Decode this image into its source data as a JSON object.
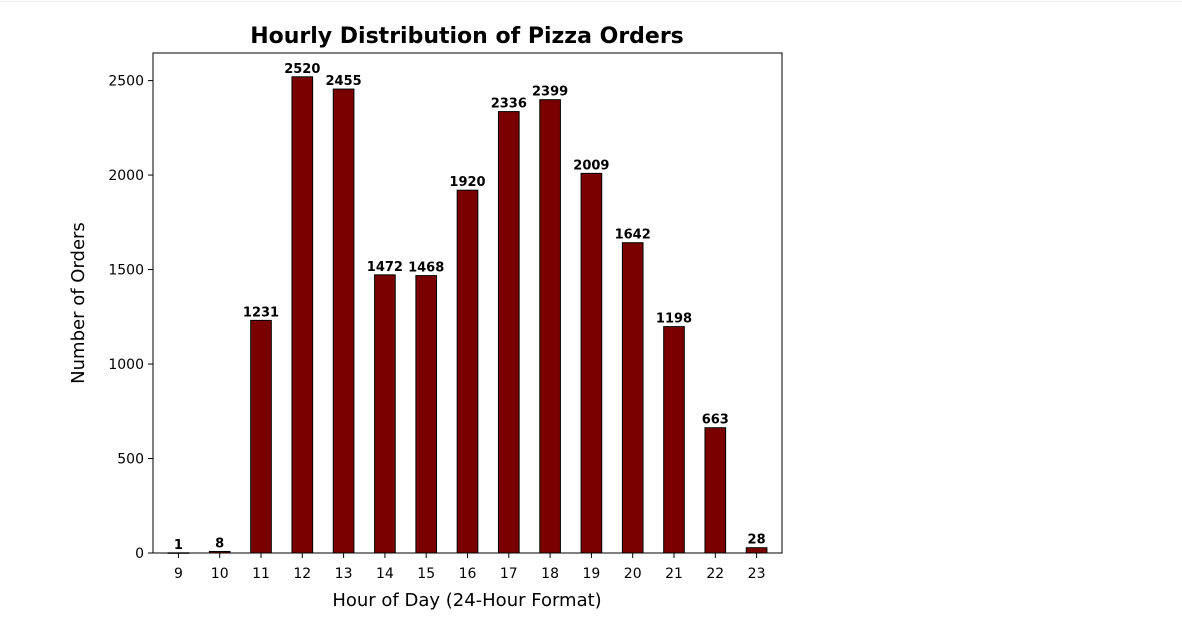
{
  "chart_data": {
    "type": "bar",
    "title": "Hourly Distribution of Pizza Orders",
    "xlabel": "Hour of Day (24-Hour Format)",
    "ylabel": "Number of Orders",
    "categories": [
      "9",
      "10",
      "11",
      "12",
      "13",
      "14",
      "15",
      "16",
      "17",
      "18",
      "19",
      "20",
      "21",
      "22",
      "23"
    ],
    "values": [
      1,
      8,
      1231,
      2520,
      2455,
      1472,
      1468,
      1920,
      2336,
      2399,
      2009,
      1642,
      1198,
      663,
      28
    ],
    "data_labels": [
      "1",
      "8",
      "1231",
      "2520",
      "2455",
      "1472",
      "1468",
      "1920",
      "2336",
      "2399",
      "2009",
      "1642",
      "1198",
      "663",
      "28"
    ],
    "yticks": [
      0,
      500,
      1000,
      1500,
      2000,
      2500
    ],
    "ylim": [
      0,
      2646
    ],
    "grid": false,
    "legend": "none",
    "colors": {
      "bar_fill": "#7a0000",
      "bar_edge": "#000000"
    }
  }
}
